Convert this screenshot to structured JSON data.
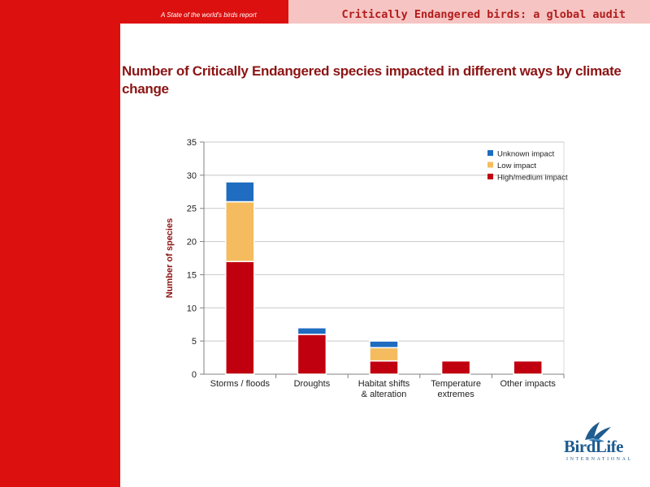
{
  "header": {
    "report_label": "A State of the world's birds report",
    "title": "Critically Endangered birds: a global audit"
  },
  "slide": {
    "title": "Number of Critically Endangered species impacted in different ways by climate change"
  },
  "logo": {
    "name": "BirdLife",
    "sub": "INTERNATIONAL"
  },
  "colors": {
    "brand_red": "#dd1010",
    "pink": "#f6c5c3",
    "title_red": "#8c1414",
    "high": "#c0000f",
    "low": "#f4bc5e",
    "unknown": "#1f6cc0"
  },
  "chart_data": {
    "type": "bar",
    "stacked": true,
    "title": "",
    "xlabel": "",
    "ylabel": "Number of species",
    "ylim": [
      0,
      35
    ],
    "yticks": [
      0,
      5,
      10,
      15,
      20,
      25,
      30,
      35
    ],
    "categories": [
      [
        "Storms / floods"
      ],
      [
        "Droughts"
      ],
      [
        "Habitat shifts",
        "& alteration"
      ],
      [
        "Temperature",
        "extremes"
      ],
      [
        "Other impacts"
      ]
    ],
    "series": [
      {
        "name": "High/medium impact",
        "color": "#c0000f",
        "values": [
          17,
          6,
          2,
          2,
          2
        ]
      },
      {
        "name": "Low impact",
        "color": "#f4bc5e",
        "values": [
          9,
          0,
          2,
          0,
          0
        ]
      },
      {
        "name": "Unknown impact",
        "color": "#1f6cc0",
        "values": [
          3,
          1,
          1,
          0,
          0
        ]
      }
    ],
    "legend_order": [
      "Unknown impact",
      "Low impact",
      "High/medium impact"
    ],
    "legend_position": "top-right",
    "grid": true
  }
}
